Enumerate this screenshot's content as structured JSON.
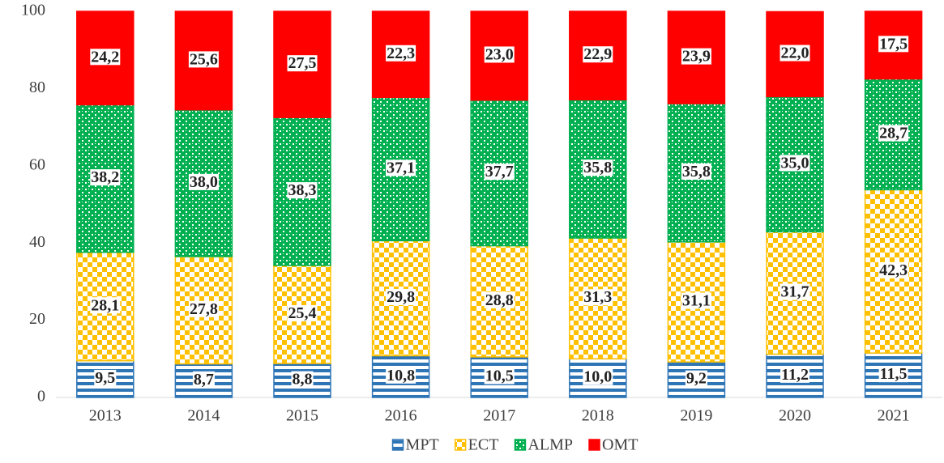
{
  "chart_data": {
    "type": "stacked_bar",
    "categories": [
      "2013",
      "2014",
      "2015",
      "2016",
      "2017",
      "2018",
      "2019",
      "2020",
      "2021"
    ],
    "series": [
      {
        "name": "MPT",
        "color": "#2e75b6",
        "pattern": "hstripe",
        "values": [
          9.5,
          8.7,
          8.8,
          10.8,
          10.5,
          10.0,
          9.2,
          11.2,
          11.5
        ],
        "value_labels": [
          "9,5",
          "8,7",
          "8,8",
          "10,8",
          "10,5",
          "10,0",
          "9,2",
          "11,2",
          "11,5"
        ]
      },
      {
        "name": "ECT",
        "color": "#ffc000",
        "pattern": "checker",
        "values": [
          28.1,
          27.8,
          25.4,
          29.8,
          28.8,
          31.3,
          31.1,
          31.7,
          42.3
        ],
        "value_labels": [
          "28,1",
          "27,8",
          "25,4",
          "29,8",
          "28,8",
          "31,3",
          "31,1",
          "31,7",
          "42,3"
        ]
      },
      {
        "name": "ALMP",
        "color": "#00b050",
        "pattern": "dots",
        "values": [
          38.2,
          38.0,
          38.3,
          37.1,
          37.7,
          35.8,
          35.8,
          35.0,
          28.7
        ],
        "value_labels": [
          "38,2",
          "38,0",
          "38,3",
          "37,1",
          "37,7",
          "35,8",
          "35,8",
          "35,0",
          "28,7"
        ]
      },
      {
        "name": "OMT",
        "color": "#ff0000",
        "pattern": "solid",
        "values": [
          24.2,
          25.6,
          27.5,
          22.3,
          23.0,
          22.9,
          23.9,
          22.0,
          17.5
        ],
        "value_labels": [
          "24,2",
          "25,6",
          "27,5",
          "22,3",
          "23,0",
          "22,9",
          "23,9",
          "22,0",
          "17,5"
        ]
      }
    ],
    "ylim": [
      0,
      100
    ],
    "yticks": [
      0,
      20,
      40,
      60,
      80,
      100
    ],
    "legend": "bottom"
  }
}
